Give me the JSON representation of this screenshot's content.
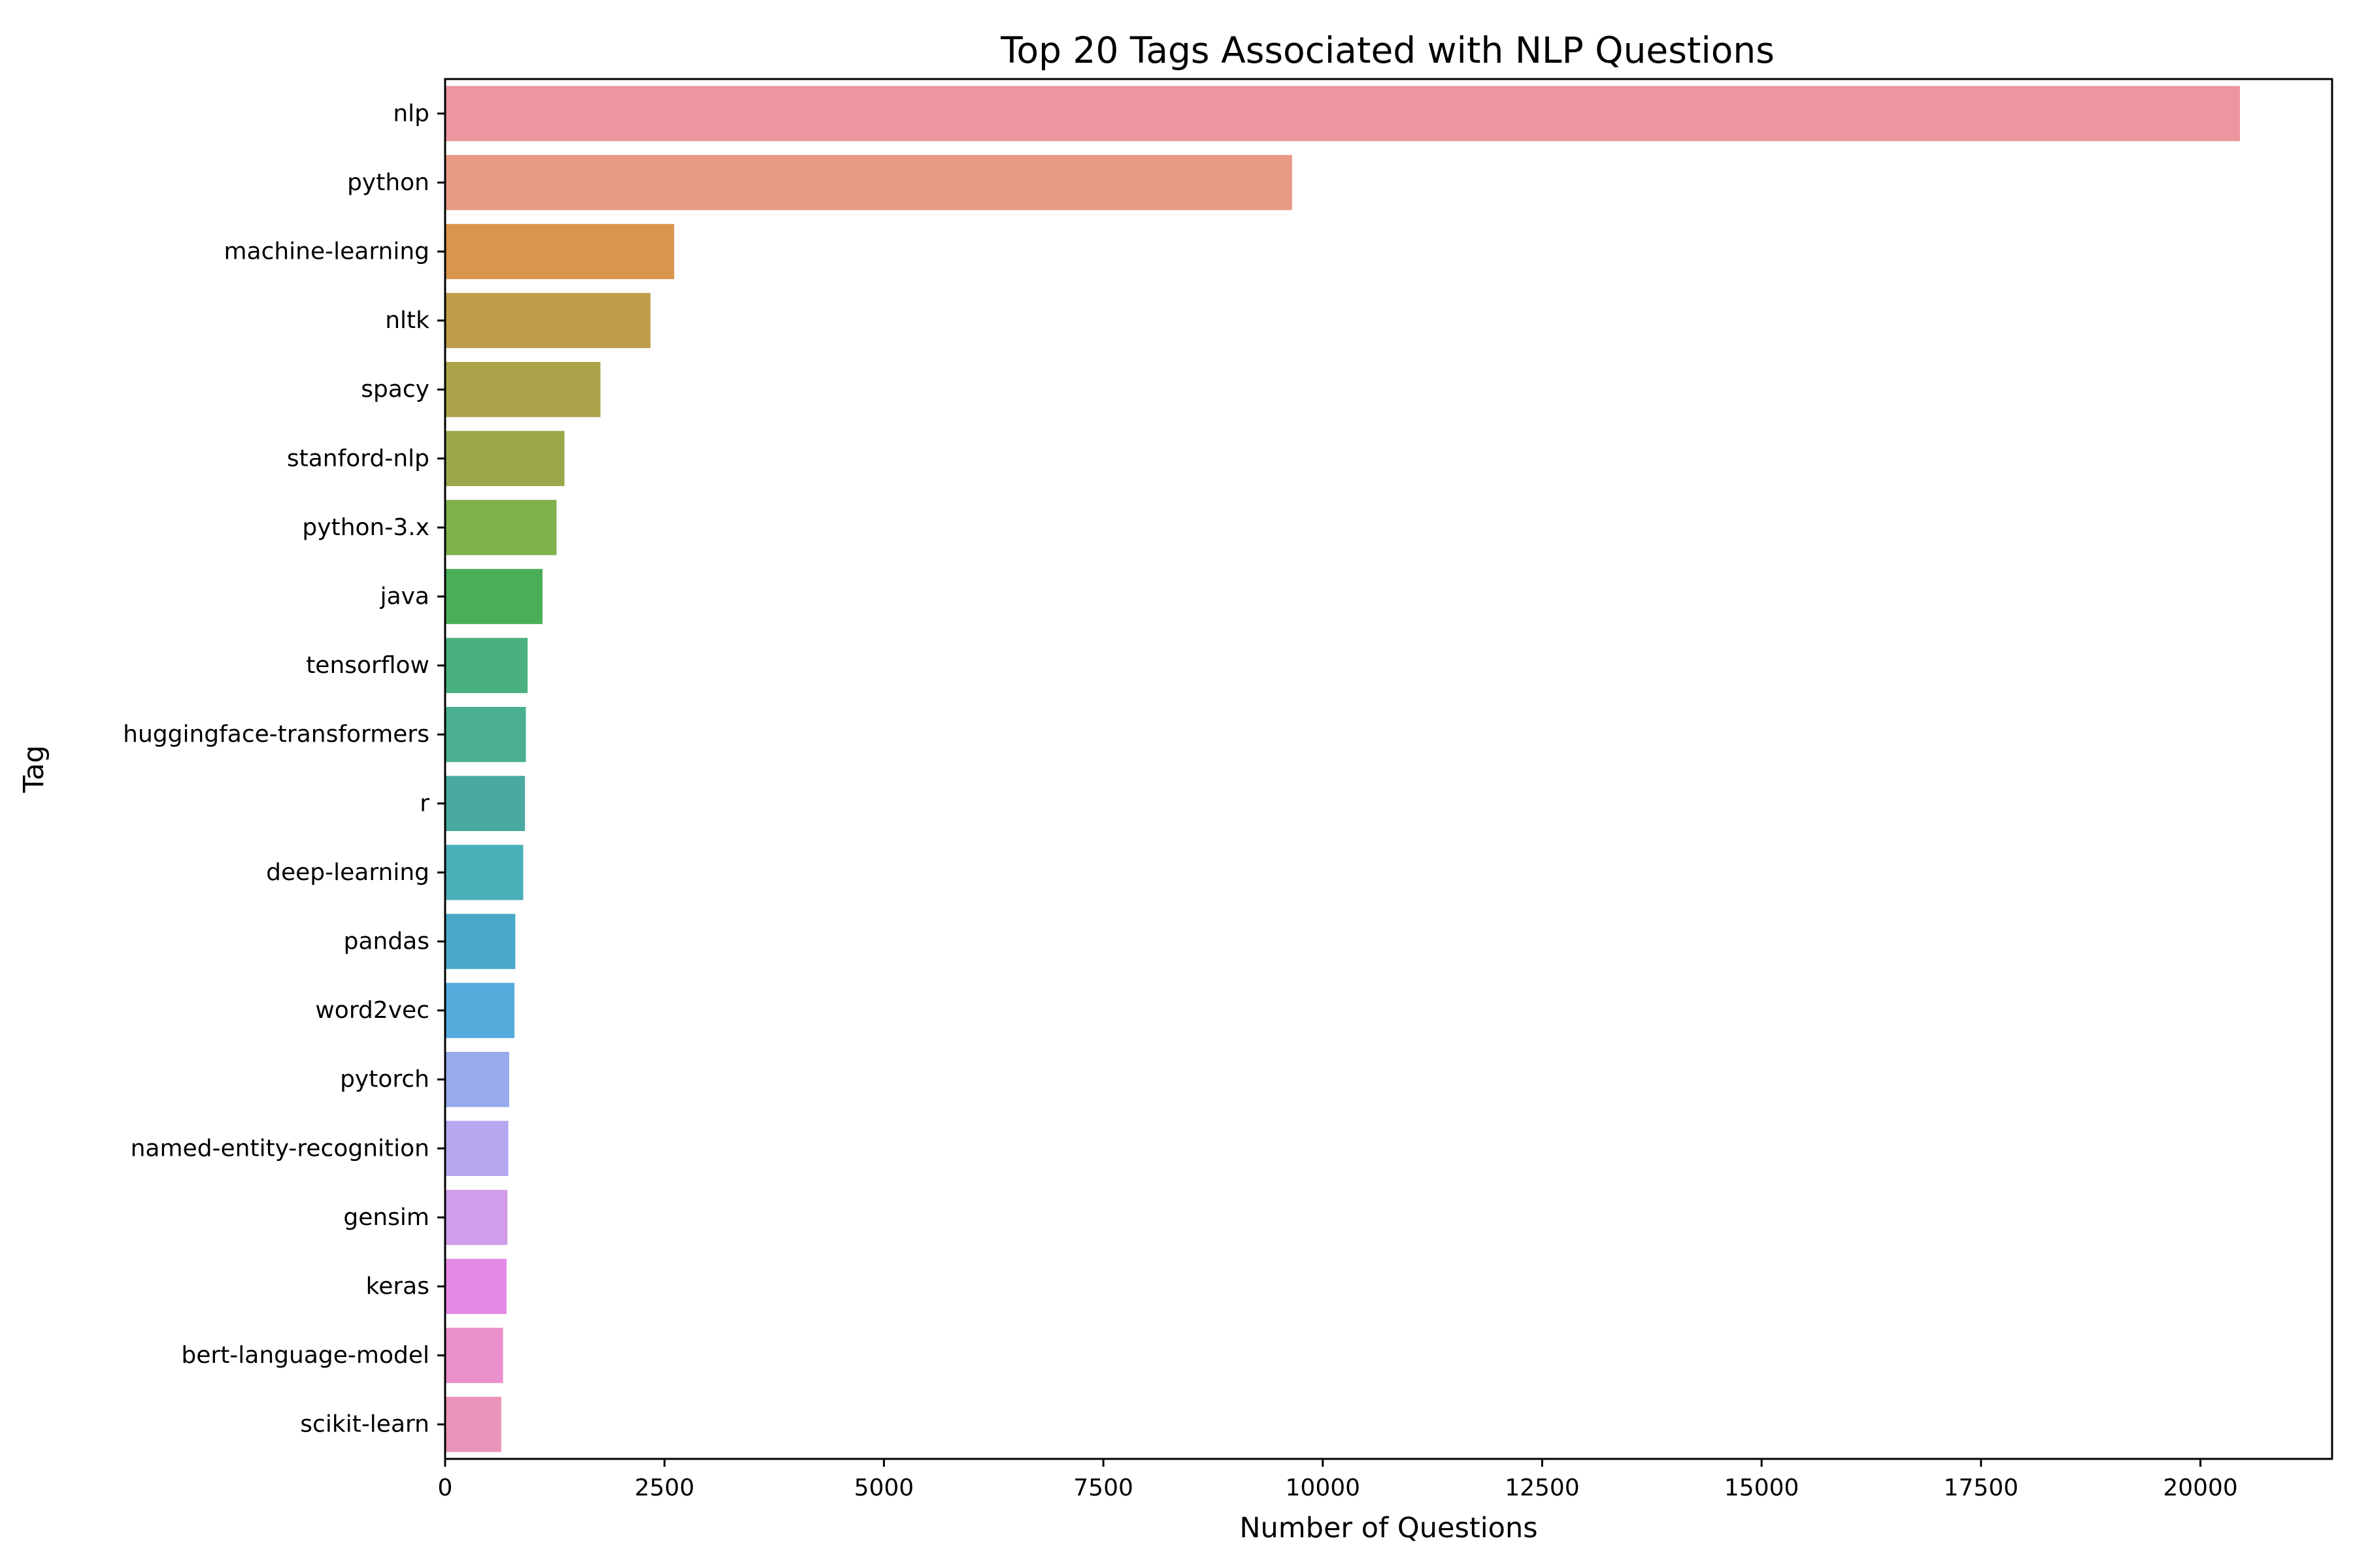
{
  "chart_data": {
    "type": "bar",
    "orientation": "horizontal",
    "title": "Top 20 Tags Associated with NLP Questions",
    "xlabel": "Number of Questions",
    "ylabel": "Tag",
    "xlim": [
      0,
      21500
    ],
    "xticks": [
      0,
      2500,
      5000,
      7500,
      10000,
      12500,
      15000,
      17500,
      20000
    ],
    "xtick_labels": [
      "0",
      "2500",
      "5000",
      "7500",
      "10000",
      "12500",
      "15000",
      "17500",
      "20000"
    ],
    "grid": false,
    "categories": [
      "nlp",
      "python",
      "machine-learning",
      "nltk",
      "spacy",
      "stanford-nlp",
      "python-3.x",
      "java",
      "tensorflow",
      "huggingface-transformers",
      "r",
      "deep-learning",
      "pandas",
      "word2vec",
      "pytorch",
      "named-entity-recognition",
      "gensim",
      "keras",
      "bert-language-model",
      "scikit-learn"
    ],
    "values": [
      20450,
      9650,
      2610,
      2340,
      1770,
      1360,
      1270,
      1110,
      940,
      920,
      910,
      890,
      800,
      790,
      730,
      720,
      710,
      700,
      660,
      640
    ],
    "colors": [
      "#ec96a0",
      "#e89a84",
      "#d9944e",
      "#be9c4a",
      "#aca24a",
      "#9ba74a",
      "#7fb04a",
      "#4aae57",
      "#4ab07e",
      "#4aaf91",
      "#4aa9a0",
      "#4aafb8",
      "#4aa9c8",
      "#54abdc",
      "#97abec",
      "#b6a7ef",
      "#d19ce9",
      "#e58ae4",
      "#ea90cc",
      "#ea94b9"
    ]
  }
}
